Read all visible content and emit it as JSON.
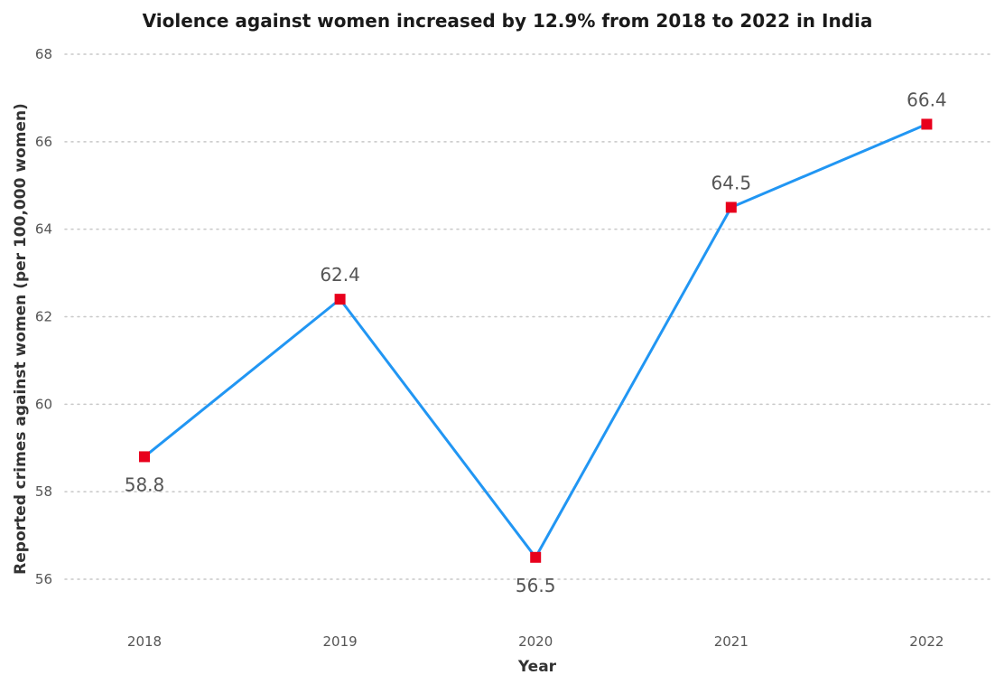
{
  "chart_data": {
    "type": "line",
    "title": "Violence against women increased by 12.9% from 2018 to 2022 in India",
    "xlabel": "Year",
    "ylabel": "Reported crimes against women (per 100,000 women)",
    "categories": [
      "2018",
      "2019",
      "2020",
      "2021",
      "2022"
    ],
    "series": [
      {
        "values": [
          58.8,
          62.4,
          56.5,
          64.5,
          66.4
        ],
        "data_labels": [
          "58.8",
          "62.4",
          "56.5",
          "64.5",
          "66.4"
        ],
        "label_position": [
          "below",
          "above",
          "below",
          "above",
          "above"
        ],
        "line_color": "#2196F3",
        "marker_color": "#E8001C",
        "marker": "square"
      }
    ],
    "ylim": [
      55,
      68
    ],
    "yticks": [
      56,
      58,
      60,
      62,
      64,
      66,
      68
    ],
    "grid": "horizontal-dotted",
    "legend": "none"
  }
}
